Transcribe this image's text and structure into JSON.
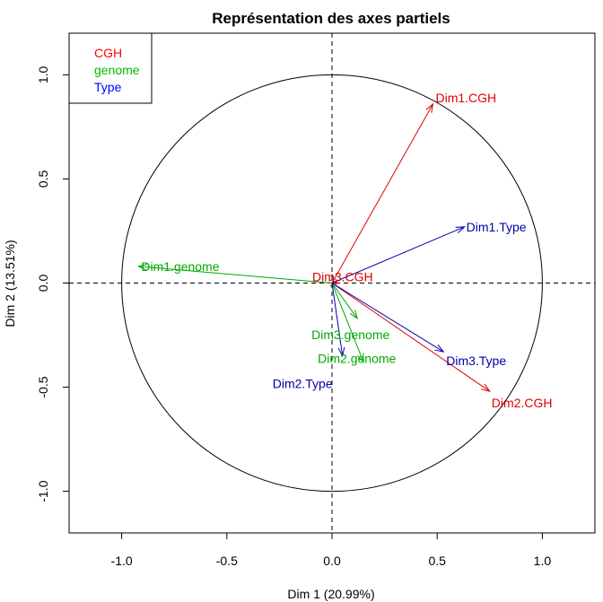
{
  "chart_data": {
    "type": "scatter",
    "title": "Représentation des axes partiels",
    "xlabel": "Dim 1 (20.99%)",
    "ylabel": "Dim 2 (13.51%)",
    "xlim": [
      -1.25,
      1.25
    ],
    "ylim": [
      -1.2,
      1.2
    ],
    "x_ticks": [
      -1.0,
      -0.5,
      0.0,
      0.5,
      1.0
    ],
    "x_tick_labels": [
      "-1.0",
      "-0.5",
      "0.0",
      "0.5",
      "1.0"
    ],
    "y_ticks": [
      -1.0,
      -0.5,
      0.0,
      0.5,
      1.0
    ],
    "y_tick_labels": [
      "-1.0",
      "-0.5",
      "0.0",
      "0.5",
      "1.0"
    ],
    "grid": false,
    "unit_circle": true,
    "zero_lines": "dashed",
    "legend": {
      "position": "top-left",
      "entries": [
        {
          "label": "CGH",
          "color": "#ff0000"
        },
        {
          "label": "genome",
          "color": "#00bb00"
        },
        {
          "label": "Type",
          "color": "#0000ff"
        }
      ]
    },
    "groups": [
      {
        "name": "CGH",
        "color": "#dd0000"
      },
      {
        "name": "genome",
        "color": "#00aa00"
      },
      {
        "name": "Type",
        "color": "#0000aa"
      }
    ],
    "vectors": [
      {
        "label": "Dim1.CGH",
        "group": "CGH",
        "x": 0.48,
        "y": 0.86
      },
      {
        "label": "Dim2.CGH",
        "group": "CGH",
        "x": 0.75,
        "y": -0.52
      },
      {
        "label": "Dim3.CGH",
        "group": "CGH",
        "x": 0.03,
        "y": 0.0
      },
      {
        "label": "Dim1.genome",
        "group": "genome",
        "x": -0.92,
        "y": 0.08
      },
      {
        "label": "Dim2.genome",
        "group": "genome",
        "x": 0.15,
        "y": -0.38
      },
      {
        "label": "Dim3.genome",
        "group": "genome",
        "x": 0.12,
        "y": -0.17
      },
      {
        "label": "Dim1.Type",
        "group": "Type",
        "x": 0.63,
        "y": 0.27
      },
      {
        "label": "Dim2.Type",
        "group": "Type",
        "x": 0.05,
        "y": -0.35
      },
      {
        "label": "Dim3.Type",
        "group": "Type",
        "x": 0.53,
        "y": -0.33
      }
    ]
  }
}
